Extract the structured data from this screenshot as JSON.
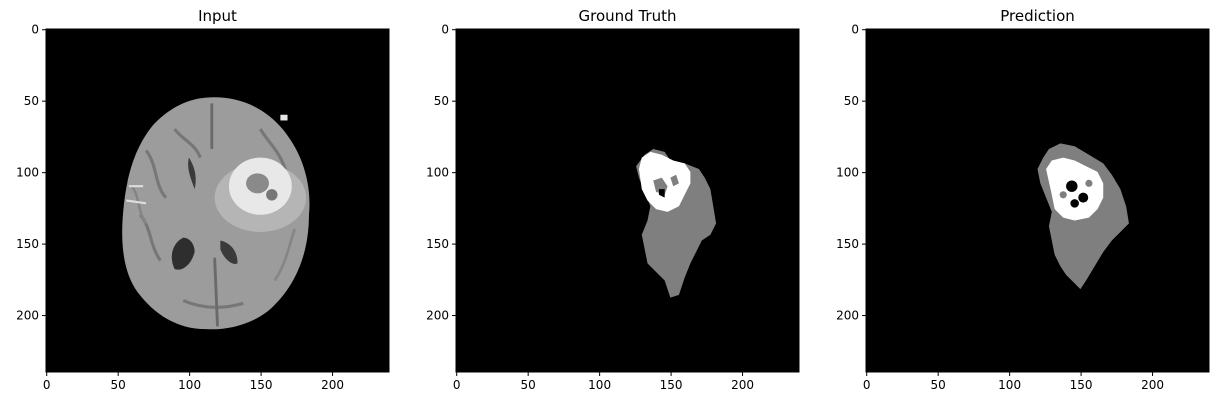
{
  "figure": {
    "panels": [
      {
        "id": "input",
        "title": "Input",
        "content": "brain-mri-slice"
      },
      {
        "id": "ground-truth",
        "title": "Ground Truth",
        "content": "tumor-segmentation-mask"
      },
      {
        "id": "prediction",
        "title": "Prediction",
        "content": "tumor-segmentation-mask"
      }
    ],
    "x_ticks": [
      "0",
      "50",
      "100",
      "150",
      "200"
    ],
    "y_ticks": [
      "0",
      "50",
      "100",
      "150",
      "200"
    ],
    "colors": {
      "background": "#000000",
      "edema": "#7f7f7f",
      "core": "#ffffff",
      "brain": "#a6a6a6"
    }
  }
}
